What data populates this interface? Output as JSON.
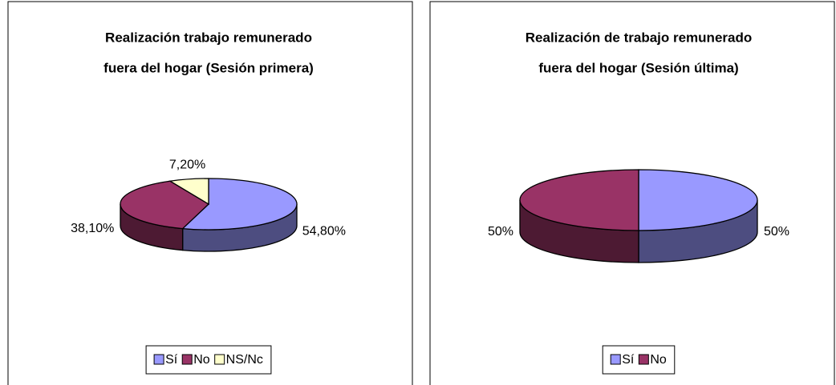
{
  "chart_data": [
    {
      "type": "pie3d",
      "title": [
        "Realización trabajo remunerado",
        "fuera del hogar (Sesión primera)"
      ],
      "categories": [
        "Sí",
        "No",
        "NS/Nc"
      ],
      "values": [
        54.8,
        38.1,
        7.2
      ],
      "value_labels": [
        "54,80%",
        "38,10%",
        "7,20%"
      ],
      "colors": [
        "#9999ff",
        "#993366",
        "#ffffcc"
      ]
    },
    {
      "type": "pie3d",
      "title": [
        "Realización de trabajo remunerado",
        "fuera del hogar (Sesión última)"
      ],
      "categories": [
        "Sí",
        "No"
      ],
      "values": [
        50,
        50
      ],
      "value_labels": [
        "50%",
        "50%"
      ],
      "colors": [
        "#9999ff",
        "#993366"
      ]
    }
  ]
}
